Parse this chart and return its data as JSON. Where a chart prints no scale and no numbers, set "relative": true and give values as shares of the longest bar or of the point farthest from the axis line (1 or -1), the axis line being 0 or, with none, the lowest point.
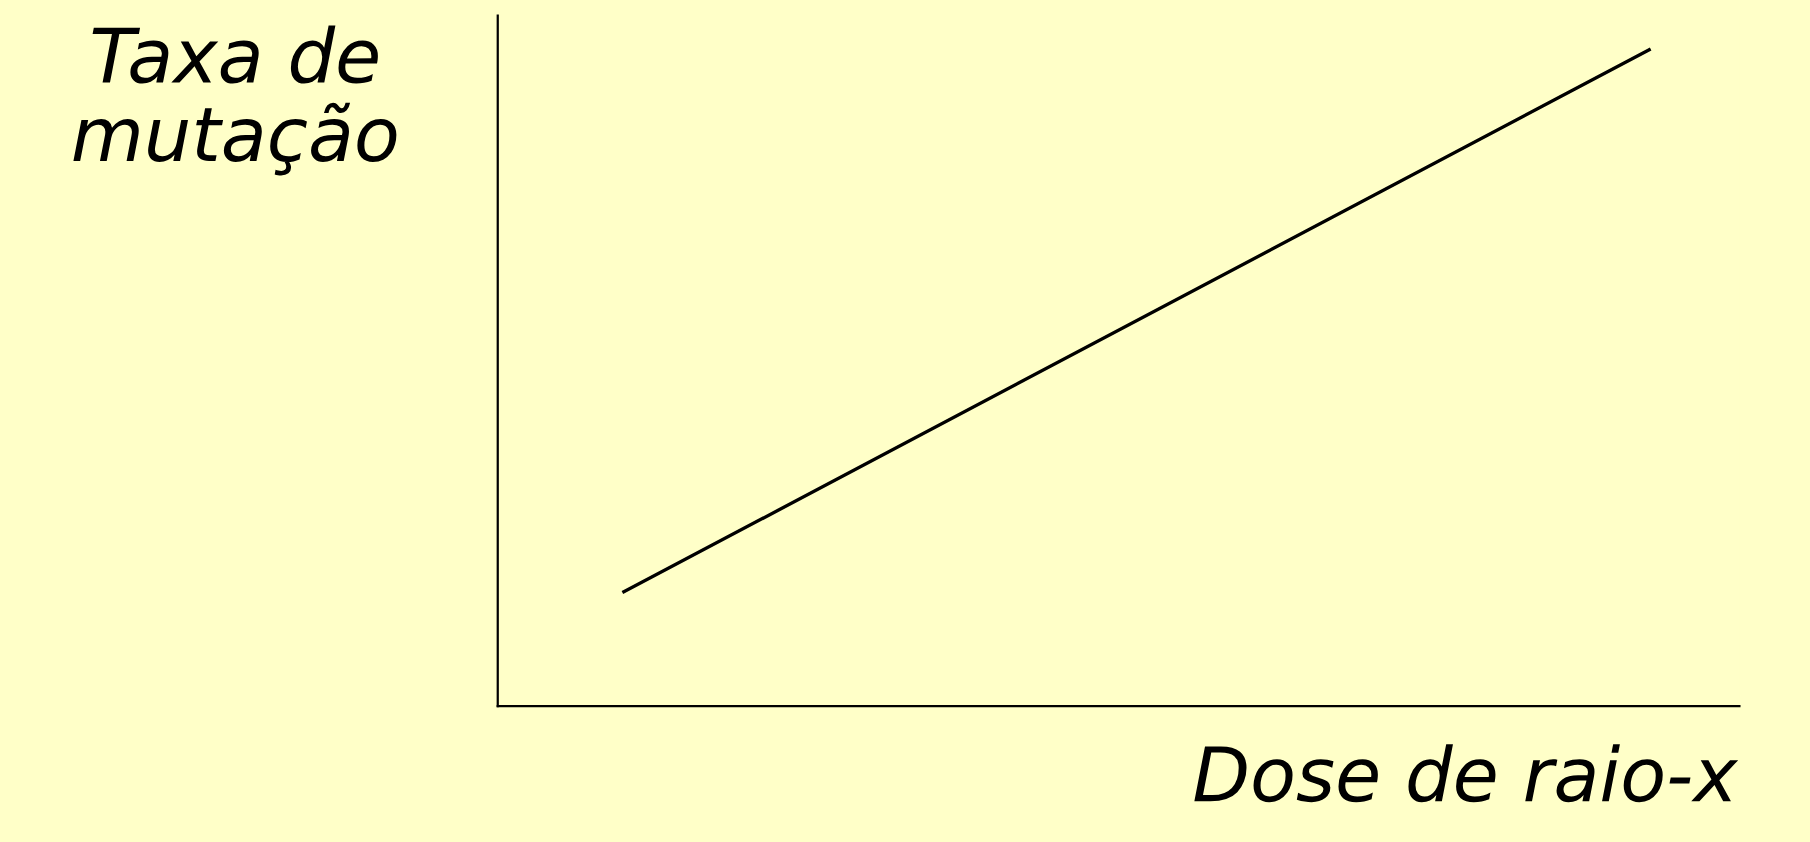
{
  "chart_data": {
    "type": "line",
    "relative": true,
    "xlabel": "Dose de raio-x",
    "ylabel": "Taxa de\nmutação",
    "categories": [
      null,
      null
    ],
    "series": [
      {
        "color": "#000000",
        "values": [
          0.174,
          1
        ]
      }
    ],
    "grid": false,
    "legend": false,
    "marker": "none",
    "line_style": "solid"
  }
}
